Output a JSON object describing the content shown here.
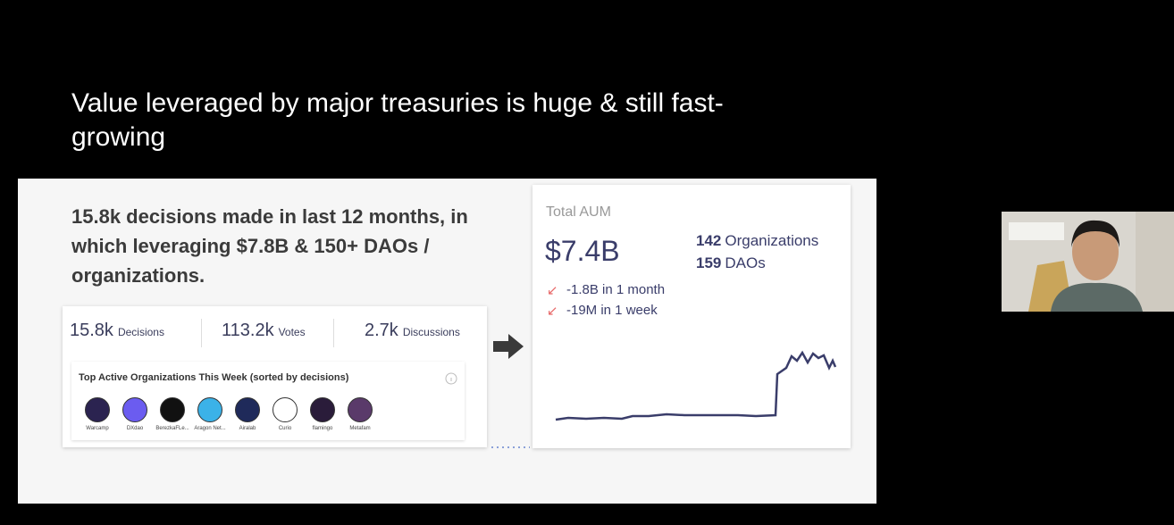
{
  "slide": {
    "title": "Value leveraged by major treasuries is huge & still fast-growing",
    "headline": "15.8k decisions made in last 12 months, in which leveraging $7.8B & 150+ DAOs / organizations.",
    "stats": [
      {
        "value": "15.8k",
        "label": "Decisions"
      },
      {
        "value": "113.2k",
        "label": "Votes"
      },
      {
        "value": "2.7k",
        "label": "Discussions"
      }
    ],
    "orgs_title": "Top Active Organizations This Week (sorted by decisions)",
    "orgs": [
      "Warcamp",
      "DXdao",
      "BerezkaFLe...",
      "Aragon Net...",
      "Airalab",
      "Curio",
      "flamingo",
      "Metafam"
    ],
    "aum": {
      "label": "Total AUM",
      "value": "$7.4B",
      "counts": [
        {
          "value": "142",
          "label": "Organizations"
        },
        {
          "value": "159",
          "label": "DAOs"
        }
      ],
      "changes": [
        "-1.8B in 1 month",
        "-19M in 1 week"
      ]
    }
  }
}
